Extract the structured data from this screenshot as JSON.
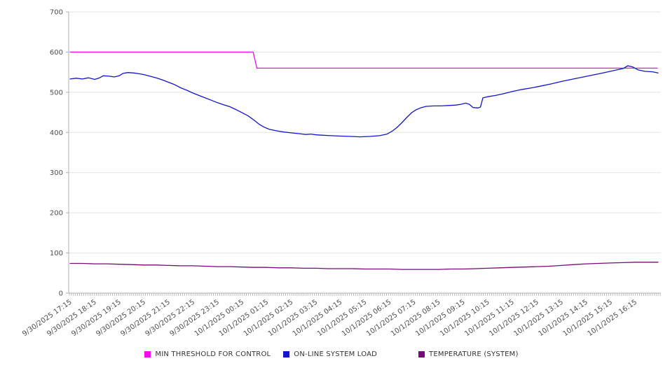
{
  "chart_data": {
    "type": "line",
    "title": "",
    "xlabel": "",
    "ylabel": "",
    "ylim": [
      0,
      700
    ],
    "y_ticks": [
      0,
      100,
      200,
      300,
      400,
      500,
      600,
      700
    ],
    "grid": "horizontal",
    "legend_position": "bottom",
    "x_tick_labels": [
      "9/30/2025 17:15",
      "9/30/2025 18:15",
      "9/30/2025 19:15",
      "9/30/2025 20:15",
      "9/30/2025 21:15",
      "9/30/2025 22:15",
      "9/30/2025 23:15",
      "10/1/2025 00:15",
      "10/1/2025 01:15",
      "10/1/2025 02:15",
      "10/1/2025 03:15",
      "10/1/2025 04:15",
      "10/1/2025 05:15",
      "10/1/2025 06:15",
      "10/1/2025 07:15",
      "10/1/2025 08:15",
      "10/1/2025 09:15",
      "10/1/2025 10:15",
      "10/1/2025 11:15",
      "10/1/2025 12:15",
      "10/1/2025 13:15",
      "10/1/2025 14:15",
      "10/1/2025 15:15",
      "10/1/2025 16:15"
    ],
    "x_hours_span": 23.93,
    "series": [
      {
        "name": "MIN THRESHOLD FOR CONTROL",
        "color": "#f40af4",
        "points": [
          [
            0,
            600
          ],
          [
            7.45,
            600
          ],
          [
            7.6,
            560
          ],
          [
            23.9,
            560
          ]
        ]
      },
      {
        "name": "ON-LINE SYSTEM LOAD",
        "color": "#1414cc",
        "points": [
          [
            0,
            533
          ],
          [
            0.25,
            535
          ],
          [
            0.5,
            533
          ],
          [
            0.75,
            536
          ],
          [
            1,
            532
          ],
          [
            1.2,
            536
          ],
          [
            1.35,
            541
          ],
          [
            1.6,
            540
          ],
          [
            1.8,
            538
          ],
          [
            2,
            541
          ],
          [
            2.15,
            547
          ],
          [
            2.35,
            549
          ],
          [
            2.6,
            548
          ],
          [
            2.8,
            546
          ],
          [
            3,
            544
          ],
          [
            3.25,
            540
          ],
          [
            3.5,
            536
          ],
          [
            3.75,
            531
          ],
          [
            4,
            525
          ],
          [
            4.25,
            519
          ],
          [
            4.5,
            511
          ],
          [
            4.75,
            505
          ],
          [
            5,
            498
          ],
          [
            5.25,
            492
          ],
          [
            5.5,
            486
          ],
          [
            5.75,
            480
          ],
          [
            6,
            474
          ],
          [
            6.25,
            469
          ],
          [
            6.5,
            464
          ],
          [
            6.75,
            457
          ],
          [
            7,
            449
          ],
          [
            7.25,
            441
          ],
          [
            7.5,
            430
          ],
          [
            7.7,
            420
          ],
          [
            7.9,
            413
          ],
          [
            8.1,
            408
          ],
          [
            8.4,
            404
          ],
          [
            8.7,
            401
          ],
          [
            9,
            399
          ],
          [
            9.3,
            397
          ],
          [
            9.6,
            395
          ],
          [
            9.8,
            396
          ],
          [
            10,
            394
          ],
          [
            10.3,
            393
          ],
          [
            10.6,
            392
          ],
          [
            11,
            391
          ],
          [
            11.4,
            390
          ],
          [
            11.8,
            389
          ],
          [
            12.2,
            390
          ],
          [
            12.6,
            392
          ],
          [
            12.9,
            396
          ],
          [
            13.1,
            403
          ],
          [
            13.3,
            412
          ],
          [
            13.5,
            424
          ],
          [
            13.7,
            437
          ],
          [
            13.9,
            449
          ],
          [
            14.1,
            457
          ],
          [
            14.3,
            462
          ],
          [
            14.5,
            465
          ],
          [
            14.8,
            466
          ],
          [
            15.1,
            466
          ],
          [
            15.4,
            467
          ],
          [
            15.7,
            468
          ],
          [
            15.9,
            470
          ],
          [
            16.1,
            473
          ],
          [
            16.25,
            470
          ],
          [
            16.4,
            462
          ],
          [
            16.6,
            461
          ],
          [
            16.7,
            463
          ],
          [
            16.8,
            486
          ],
          [
            17,
            489
          ],
          [
            17.3,
            492
          ],
          [
            17.6,
            496
          ],
          [
            18,
            502
          ],
          [
            18.4,
            507
          ],
          [
            18.8,
            511
          ],
          [
            19.2,
            516
          ],
          [
            19.6,
            521
          ],
          [
            20,
            527
          ],
          [
            20.4,
            532
          ],
          [
            20.8,
            537
          ],
          [
            21.2,
            542
          ],
          [
            21.6,
            547
          ],
          [
            21.9,
            551
          ],
          [
            22.2,
            555
          ],
          [
            22.5,
            559
          ],
          [
            22.7,
            566
          ],
          [
            22.9,
            563
          ],
          [
            23.1,
            556
          ],
          [
            23.4,
            552
          ],
          [
            23.7,
            551
          ],
          [
            23.93,
            548
          ]
        ]
      },
      {
        "name": "TEMPERATURE (SYSTEM)",
        "color": "#780a78",
        "points": [
          [
            0,
            74
          ],
          [
            0.5,
            74
          ],
          [
            1,
            73
          ],
          [
            1.5,
            73
          ],
          [
            2,
            72
          ],
          [
            2.5,
            71
          ],
          [
            3,
            70
          ],
          [
            3.5,
            70
          ],
          [
            4,
            69
          ],
          [
            4.5,
            68
          ],
          [
            5,
            68
          ],
          [
            5.5,
            67
          ],
          [
            6,
            66
          ],
          [
            6.5,
            66
          ],
          [
            7,
            65
          ],
          [
            7.5,
            64
          ],
          [
            8,
            64
          ],
          [
            8.5,
            63
          ],
          [
            9,
            63
          ],
          [
            9.5,
            62
          ],
          [
            10,
            62
          ],
          [
            10.5,
            61
          ],
          [
            11,
            61
          ],
          [
            11.5,
            61
          ],
          [
            12,
            60
          ],
          [
            12.5,
            60
          ],
          [
            13,
            60
          ],
          [
            13.5,
            59
          ],
          [
            14,
            59
          ],
          [
            14.5,
            59
          ],
          [
            15,
            59
          ],
          [
            15.5,
            60
          ],
          [
            16,
            60
          ],
          [
            16.5,
            61
          ],
          [
            17,
            62
          ],
          [
            17.5,
            63
          ],
          [
            18,
            64
          ],
          [
            18.5,
            65
          ],
          [
            19,
            66
          ],
          [
            19.5,
            67
          ],
          [
            20,
            69
          ],
          [
            20.5,
            71
          ],
          [
            21,
            73
          ],
          [
            21.5,
            74
          ],
          [
            22,
            75
          ],
          [
            22.5,
            76
          ],
          [
            23,
            77
          ],
          [
            23.5,
            77
          ],
          [
            23.93,
            77
          ]
        ]
      }
    ],
    "style": {
      "gridline_color": "#e3e3e3",
      "axis_color": "#b0b0b0",
      "tick_color": "#9a9a9a",
      "tick_label_color": "#4d4d4d",
      "legend_label_color": "#333333"
    }
  }
}
